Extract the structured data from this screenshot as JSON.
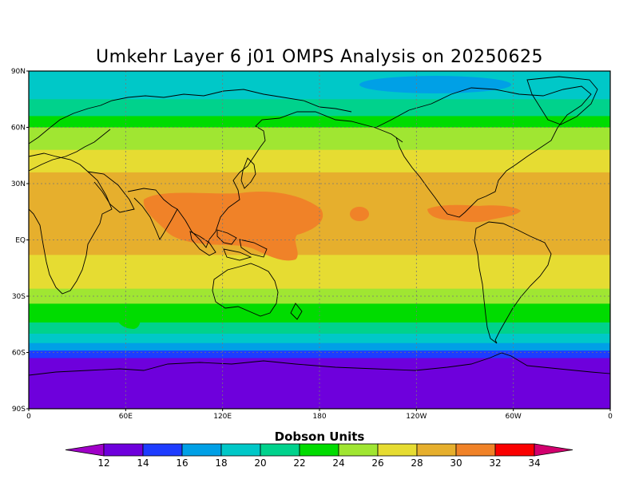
{
  "title": "Umkehr Layer 6 j01 OMPS Analysis on 20250625",
  "colorbar": {
    "title": "Dobson Units",
    "labels": [
      "12",
      "14",
      "16",
      "18",
      "20",
      "22",
      "24",
      "26",
      "28",
      "30",
      "32",
      "34"
    ],
    "colors": [
      "#a000c8",
      "#6e00dc",
      "#1e3cff",
      "#00a0e6",
      "#00c8c8",
      "#00d28c",
      "#00dc00",
      "#a0e632",
      "#e6dc32",
      "#e6af2d",
      "#f08228",
      "#fa0000",
      "#d2006e"
    ]
  },
  "map": {
    "lat_labels": [
      "90N",
      "60N",
      "30N",
      "EQ",
      "30S",
      "60S",
      "90S"
    ],
    "lon_labels": [
      "0",
      "60E",
      "120E",
      "180",
      "120W",
      "60W",
      "0"
    ],
    "bands": [
      {
        "from_lat": 90,
        "to_lat": 75,
        "value": 20
      },
      {
        "from_lat": 75,
        "to_lat": 66,
        "value": 22
      },
      {
        "from_lat": 66,
        "to_lat": 60,
        "value": 24
      },
      {
        "from_lat": 60,
        "to_lat": 48,
        "value": 26
      },
      {
        "from_lat": 48,
        "to_lat": 36,
        "value": 28
      },
      {
        "from_lat": 36,
        "to_lat": -8,
        "value": 30
      },
      {
        "from_lat": -8,
        "to_lat": -26,
        "value": 28
      },
      {
        "from_lat": -26,
        "to_lat": -34,
        "value": 26
      },
      {
        "from_lat": -34,
        "to_lat": -44,
        "value": 24
      },
      {
        "from_lat": -44,
        "to_lat": -50,
        "value": 22
      },
      {
        "from_lat": -50,
        "to_lat": -55,
        "value": 20
      },
      {
        "from_lat": -55,
        "to_lat": -59,
        "value": 18
      },
      {
        "from_lat": -59,
        "to_lat": -63,
        "value": 16
      },
      {
        "from_lat": -63,
        "to_lat": -90,
        "value": 14
      }
    ]
  }
}
